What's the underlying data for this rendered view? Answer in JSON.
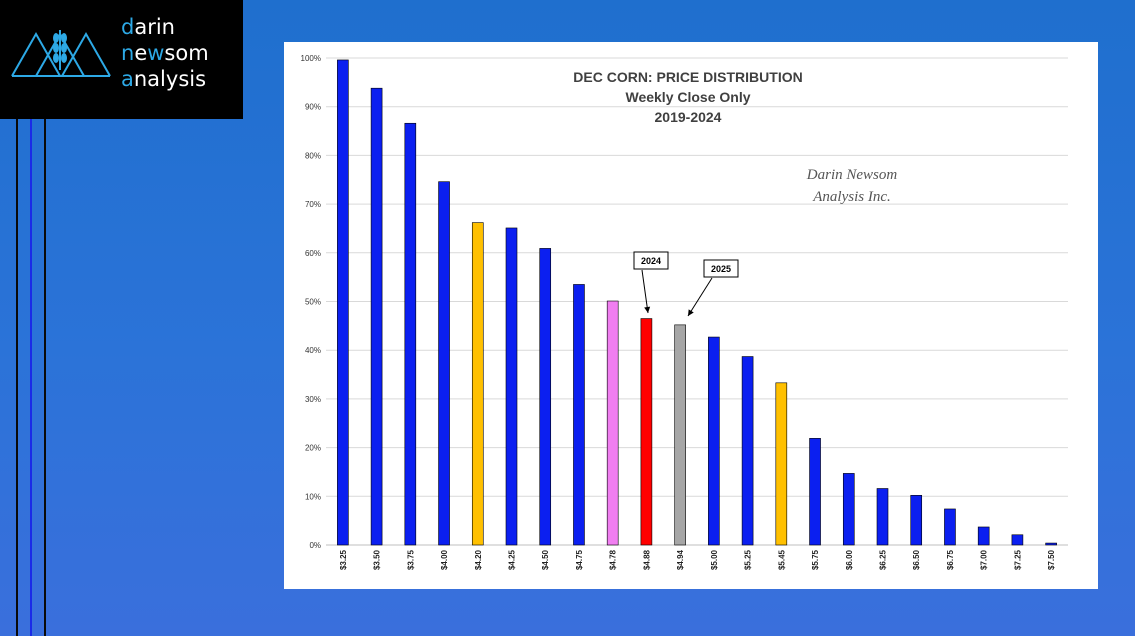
{
  "logo": {
    "lines": [
      {
        "first": "d",
        "rest": "arin"
      },
      {
        "first": "n",
        "mid": "e",
        "mid_hl": "w",
        "rest": "som"
      },
      {
        "first": "a",
        "rest": "nalysis"
      }
    ],
    "mark_icon": "mountains-wheat-icon",
    "accent_color": "#2da9e6"
  },
  "chart_data": {
    "type": "bar",
    "title": "DEC CORN: PRICE DISTRIBUTION",
    "subtitle": "Weekly Close Only",
    "subtitle2": "2019-2024",
    "watermark_line1": "Darin Newsom",
    "watermark_line2": "Analysis Inc.",
    "xlabel": "",
    "ylabel": "",
    "ylim": [
      0,
      100
    ],
    "yticks": [
      "0%",
      "10%",
      "20%",
      "30%",
      "40%",
      "50%",
      "60%",
      "70%",
      "80%",
      "90%",
      "100%"
    ],
    "categories": [
      "$3.25",
      "$3.50",
      "$3.75",
      "$4.00",
      "$4.20",
      "$4.25",
      "$4.50",
      "$4.75",
      "$4.78",
      "$4.88",
      "$4.94",
      "$5.00",
      "$5.25",
      "$5.45",
      "$5.75",
      "$6.00",
      "$6.25",
      "$6.50",
      "$6.75",
      "$7.00",
      "$7.25",
      "$7.50"
    ],
    "values": [
      99.6,
      93.8,
      86.6,
      74.6,
      66.2,
      65.1,
      60.9,
      53.5,
      50.1,
      46.5,
      45.2,
      42.7,
      38.7,
      33.3,
      21.9,
      14.7,
      11.6,
      10.2,
      7.4,
      3.7,
      2.1,
      0.4
    ],
    "colors": [
      "#0b1ff0",
      "#0b1ff0",
      "#0b1ff0",
      "#0b1ff0",
      "#ffc000",
      "#0b1ff0",
      "#0b1ff0",
      "#0b1ff0",
      "#f07ef0",
      "#ff0000",
      "#a6a6a6",
      "#0b1ff0",
      "#0b1ff0",
      "#ffc000",
      "#0b1ff0",
      "#0b1ff0",
      "#0b1ff0",
      "#0b1ff0",
      "#0b1ff0",
      "#0b1ff0",
      "#0b1ff0",
      "#0b1ff0"
    ],
    "grid": true,
    "annotations": [
      {
        "label": "2024",
        "category": "$4.88"
      },
      {
        "label": "2025",
        "category": "$4.94"
      }
    ]
  }
}
